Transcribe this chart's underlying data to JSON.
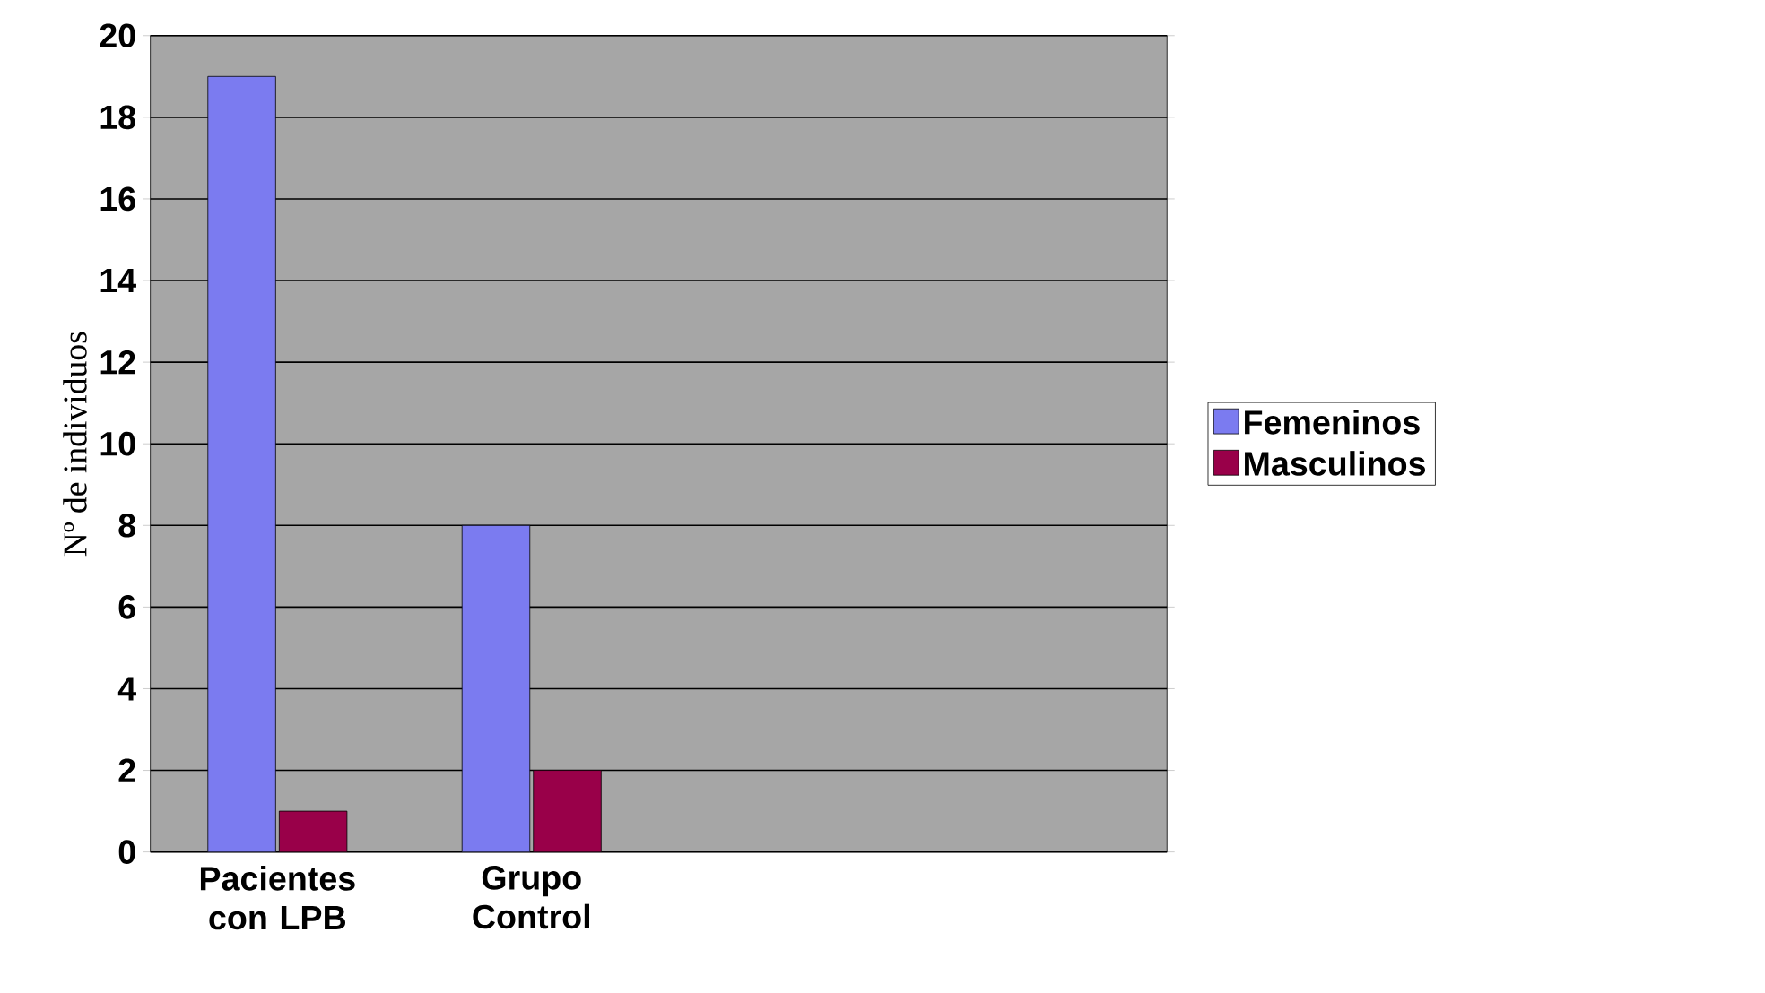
{
  "chart_data": {
    "type": "bar",
    "ylabel": "Nº de individuos",
    "categories": [
      "Pacientes con LPB",
      "Grupo Control",
      null,
      null
    ],
    "series": [
      {
        "name": "Femeninos",
        "color": "#7b7bf0",
        "values": [
          19,
          8,
          null,
          null
        ]
      },
      {
        "name": "Masculinos",
        "color": "#990049",
        "values": [
          1,
          2,
          null,
          null
        ]
      }
    ],
    "ylim": [
      0,
      20
    ],
    "yticks": [
      0,
      2,
      4,
      6,
      8,
      10,
      12,
      14,
      16,
      18,
      20
    ],
    "grid": "y",
    "legend": "right"
  }
}
